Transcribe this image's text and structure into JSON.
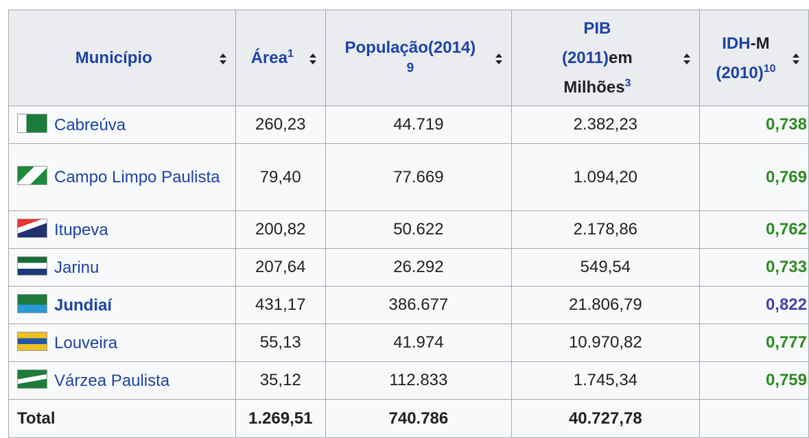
{
  "table": {
    "header": [
      {
        "parts": [
          {
            "text": "Município",
            "link": true
          }
        ]
      },
      {
        "parts": [
          {
            "text": "Área",
            "link": true
          },
          {
            "text": "1",
            "link": true
          }
        ]
      },
      {
        "parts": [
          {
            "text": "População(2014)",
            "link": true
          },
          {
            "text": "9",
            "link": true
          }
        ]
      },
      {
        "parts": [
          {
            "text": "PIB",
            "link": true
          },
          {
            "text": "(2011)",
            "link": true
          },
          {
            "text": "em",
            "link": false
          },
          {
            "text": "Milhões",
            "link": false
          },
          {
            "text": "3",
            "link": true
          }
        ]
      },
      {
        "parts": [
          {
            "text": "IDH",
            "link": true
          },
          {
            "text": "-M",
            "link": false
          },
          {
            "text": "(2010)",
            "link": true
          },
          {
            "text": "10",
            "link": true
          }
        ]
      }
    ],
    "rows": [
      {
        "municipio": "Cabreúva",
        "area": "260,23",
        "populacao": "44.719",
        "pib": "2.382,23",
        "idh": "0,738",
        "idh_color": "#2d8a22",
        "bold": false
      },
      {
        "municipio": "Campo Limpo Paulista",
        "area": "79,40",
        "populacao": "77.669",
        "pib": "1.094,20",
        "idh": "0,769",
        "idh_color": "#2d8a22",
        "bold": false
      },
      {
        "municipio": "Itupeva",
        "area": "200,82",
        "populacao": "50.622",
        "pib": "2.178,86",
        "idh": "0,762",
        "idh_color": "#2d8a22",
        "bold": false
      },
      {
        "municipio": "Jarinu",
        "area": "207,64",
        "populacao": "26.292",
        "pib": "549,54",
        "idh": "0,733",
        "idh_color": "#2d8a22",
        "bold": false
      },
      {
        "municipio": "Jundiaí",
        "area": "431,17",
        "populacao": "386.677",
        "pib": "21.806,79",
        "idh": "0,822",
        "idh_color": "#4343b0",
        "bold": true
      },
      {
        "municipio": "Louveira",
        "area": "55,13",
        "populacao": "41.974",
        "pib": "10.970,82",
        "idh": "0,777",
        "idh_color": "#2d8a22",
        "bold": false
      },
      {
        "municipio": "Várzea Paulista",
        "area": "35,12",
        "populacao": "112.833",
        "pib": "1.745,34",
        "idh": "0,759",
        "idh_color": "#2d8a22",
        "bold": false
      }
    ],
    "total": {
      "label": "Total",
      "area": "1.269,51",
      "populacao": "740.786",
      "pib": "40.727,78"
    }
  }
}
